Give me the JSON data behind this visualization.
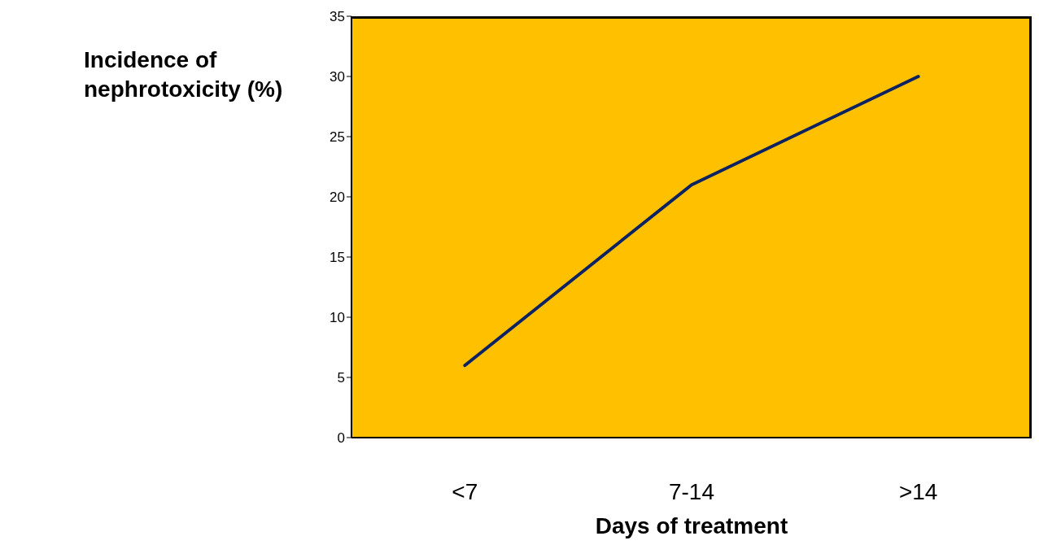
{
  "chart_data": {
    "type": "line",
    "xlabel": "Days of treatment",
    "ylabel": "Incidence of nephrotoxicity (%)",
    "categories": [
      "<7",
      "7-14",
      ">14"
    ],
    "series": [
      {
        "color": "#0d2260",
        "values": [
          6,
          21,
          30
        ]
      }
    ],
    "ylim": [
      0,
      35
    ],
    "yticks": [
      0,
      5,
      10,
      15,
      20,
      25,
      30,
      35
    ],
    "marker": "none",
    "line_style": "solid"
  }
}
